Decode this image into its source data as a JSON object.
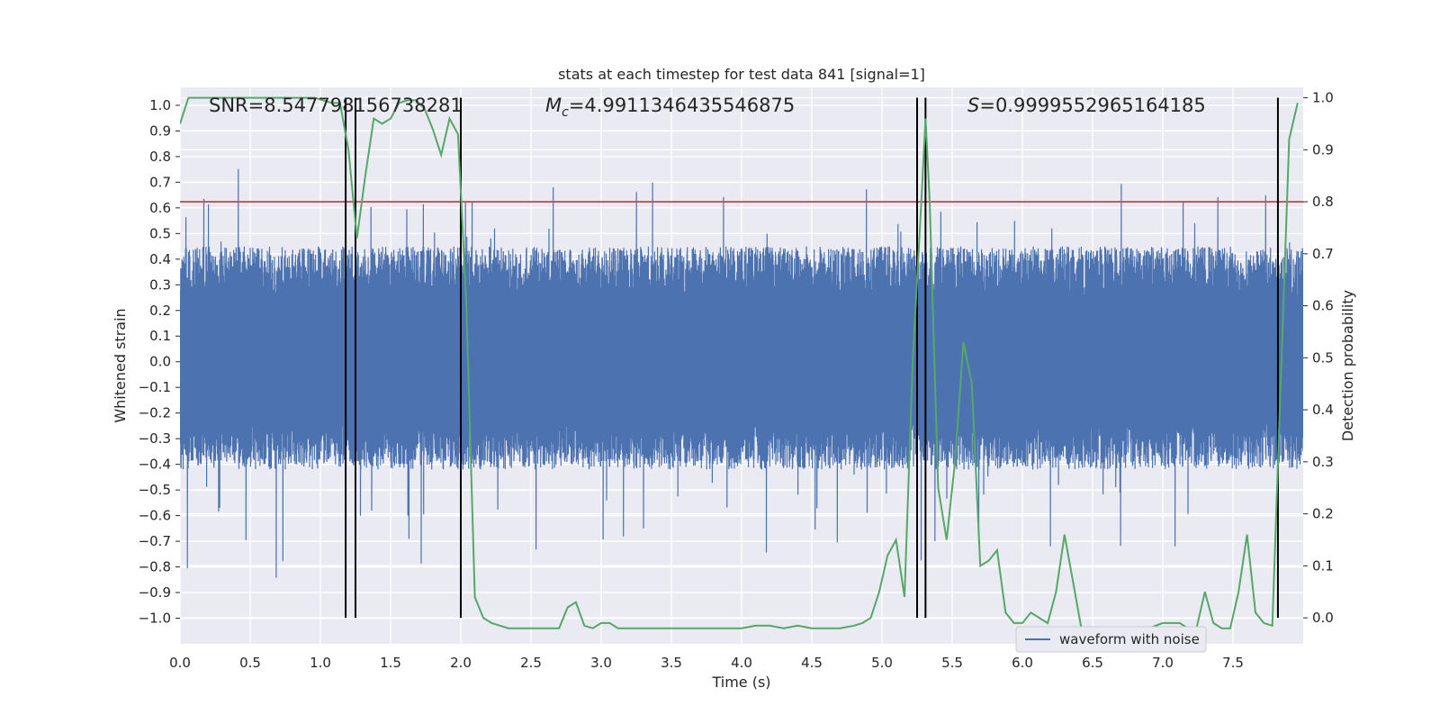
{
  "chart_data": {
    "type": "line",
    "title": "stats at each timestep for test data 841 [signal=1]",
    "xlabel": "Time (s)",
    "ylabel": "Whitened strain",
    "y2label": "Detection probability",
    "xlim": [
      0,
      8
    ],
    "ylim": [
      -1.1,
      1.07
    ],
    "y2lim": [
      -0.05,
      1.02
    ],
    "xticks": [
      "0.0",
      "0.5",
      "1.0",
      "1.5",
      "2.0",
      "2.5",
      "3.0",
      "3.5",
      "4.0",
      "4.5",
      "5.0",
      "5.5",
      "6.0",
      "6.5",
      "7.0",
      "7.5"
    ],
    "yticks": [
      "1.0",
      "0.9",
      "0.8",
      "0.7",
      "0.6",
      "0.5",
      "0.4",
      "0.3",
      "0.2",
      "0.1",
      "0.0",
      "-0.1",
      "-0.2",
      "-0.3",
      "-0.4",
      "-0.5",
      "-0.6",
      "-0.7",
      "-0.8",
      "-0.9",
      "-1.0"
    ],
    "y2ticks": [
      "1.0",
      "0.9",
      "0.8",
      "0.7",
      "0.6",
      "0.5",
      "0.4",
      "0.3",
      "0.2",
      "0.1",
      "0.0"
    ],
    "grid": true,
    "legend": {
      "position": "lower-right",
      "entries": [
        "waveform with noise"
      ]
    },
    "annotations": {
      "snr": "SNR=8.547798156738281",
      "mc_symbol": "M",
      "mc_subscript": "c",
      "mc_value": "=4.9911346435546875",
      "s_symbol": "S",
      "s_value": "=0.9999552965164185"
    },
    "threshold": {
      "y2": 0.8,
      "color": "#c44e52"
    },
    "vertical_lines_x": [
      1.18,
      1.25,
      2.0,
      5.25,
      5.31,
      7.82
    ],
    "colors": {
      "waveform": "#4c72b0",
      "probability": "#55a868",
      "threshold": "#c44e52",
      "vlines": "#000000",
      "background": "#eaeaf2",
      "grid": "#ffffff"
    },
    "waveform": {
      "duration": 8.0,
      "envelope": {
        "typical_peak": 0.45,
        "typical_trough": -0.42,
        "max": 0.95,
        "min": -1.0
      }
    },
    "probability_series": {
      "x": [
        0.0,
        0.06,
        0.12,
        0.18,
        0.24,
        0.3,
        0.36,
        0.42,
        0.48,
        0.54,
        0.6,
        0.66,
        0.72,
        0.78,
        0.84,
        0.9,
        0.96,
        1.02,
        1.08,
        1.14,
        1.2,
        1.26,
        1.32,
        1.38,
        1.44,
        1.5,
        1.56,
        1.62,
        1.68,
        1.74,
        1.8,
        1.86,
        1.92,
        1.98,
        2.04,
        2.1,
        2.16,
        2.22,
        2.28,
        2.34,
        2.4,
        2.5,
        2.6,
        2.7,
        2.76,
        2.82,
        2.88,
        2.94,
        3.0,
        3.06,
        3.12,
        3.2,
        3.3,
        3.4,
        3.5,
        3.6,
        3.7,
        3.8,
        3.9,
        4.0,
        4.1,
        4.2,
        4.3,
        4.4,
        4.5,
        4.6,
        4.7,
        4.8,
        4.86,
        4.92,
        4.98,
        5.04,
        5.1,
        5.16,
        5.22,
        5.28,
        5.31,
        5.34,
        5.4,
        5.46,
        5.52,
        5.58,
        5.64,
        5.7,
        5.76,
        5.82,
        5.88,
        5.94,
        6.0,
        6.06,
        6.12,
        6.18,
        6.24,
        6.3,
        6.36,
        6.42,
        6.48,
        6.54,
        6.6,
        6.7,
        6.8,
        6.9,
        7.0,
        7.06,
        7.12,
        7.18,
        7.24,
        7.3,
        7.36,
        7.42,
        7.48,
        7.54,
        7.6,
        7.66,
        7.72,
        7.78,
        7.84,
        7.9,
        7.96
      ],
      "y": [
        0.95,
        1.0,
        1.0,
        1.0,
        1.0,
        1.0,
        1.0,
        1.0,
        1.0,
        1.0,
        1.0,
        1.0,
        1.0,
        1.0,
        1.0,
        1.0,
        1.0,
        0.995,
        0.99,
        0.99,
        0.9,
        0.73,
        0.85,
        0.96,
        0.95,
        0.96,
        0.99,
        0.995,
        0.995,
        0.98,
        0.94,
        0.89,
        0.96,
        0.93,
        0.6,
        0.04,
        0.0,
        -0.01,
        -0.015,
        -0.02,
        -0.02,
        -0.02,
        -0.02,
        -0.02,
        0.02,
        0.03,
        -0.015,
        -0.02,
        -0.01,
        -0.01,
        -0.02,
        -0.02,
        -0.02,
        -0.02,
        -0.02,
        -0.02,
        -0.02,
        -0.02,
        -0.02,
        -0.02,
        -0.015,
        -0.015,
        -0.02,
        -0.015,
        -0.02,
        -0.02,
        -0.02,
        -0.015,
        -0.01,
        0.0,
        0.05,
        0.12,
        0.15,
        0.04,
        0.5,
        0.8,
        0.96,
        0.8,
        0.25,
        0.15,
        0.3,
        0.53,
        0.45,
        0.1,
        0.11,
        0.13,
        0.01,
        -0.01,
        -0.01,
        0.01,
        0.0,
        -0.01,
        0.05,
        0.16,
        0.07,
        -0.02,
        -0.02,
        -0.02,
        -0.02,
        -0.02,
        -0.02,
        -0.02,
        -0.01,
        -0.01,
        -0.01,
        -0.02,
        -0.02,
        0.05,
        -0.01,
        -0.02,
        -0.02,
        0.05,
        0.16,
        0.01,
        -0.01,
        -0.015,
        0.45,
        0.92,
        0.99
      ]
    }
  }
}
